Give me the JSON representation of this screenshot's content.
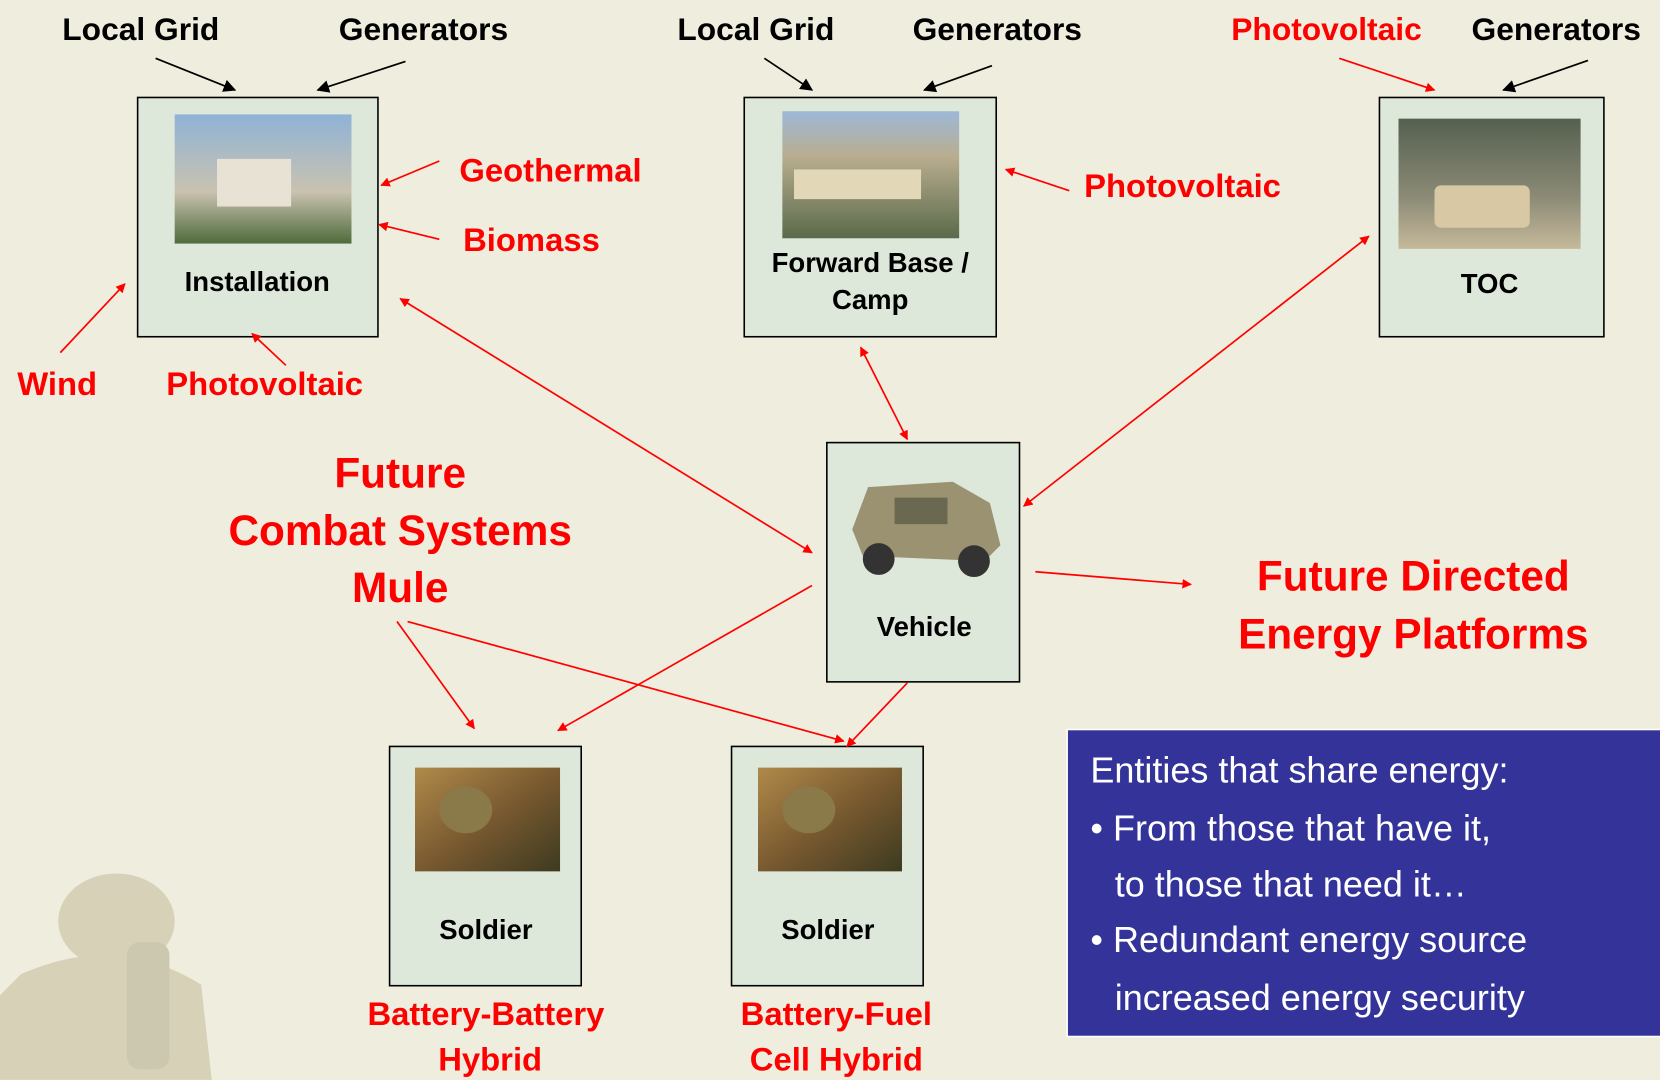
{
  "top_labels": [
    "Local Grid",
    "Generators",
    "Local Grid",
    "Generators",
    "Photovoltaic",
    "Generators"
  ],
  "nodes": [
    {
      "label": [
        "Installation"
      ]
    },
    {
      "label": [
        "Forward Base /",
        "Camp"
      ]
    },
    {
      "label": [
        "TOC"
      ]
    },
    {
      "label": [
        "Vehicle"
      ]
    },
    {
      "label": [
        "Soldier"
      ],
      "caption": [
        "Battery-Battery",
        "Hybrid"
      ]
    },
    {
      "label": [
        "Soldier"
      ],
      "caption": [
        "Battery-Fuel",
        "Cell Hybrid"
      ]
    }
  ],
  "sources": [
    "Geothermal",
    "Biomass",
    "Wind",
    "Photovoltaic",
    "Photovoltaic"
  ],
  "mule": [
    "Future",
    "Combat Systems",
    "Mule"
  ],
  "directed_energy": [
    "Future Directed",
    "Energy Platforms"
  ],
  "note": {
    "heading": "Entities that share energy:",
    "lines": [
      "• From those that have it,",
      "to those that need it…",
      "• Redundant energy source",
      "increased energy security"
    ]
  }
}
